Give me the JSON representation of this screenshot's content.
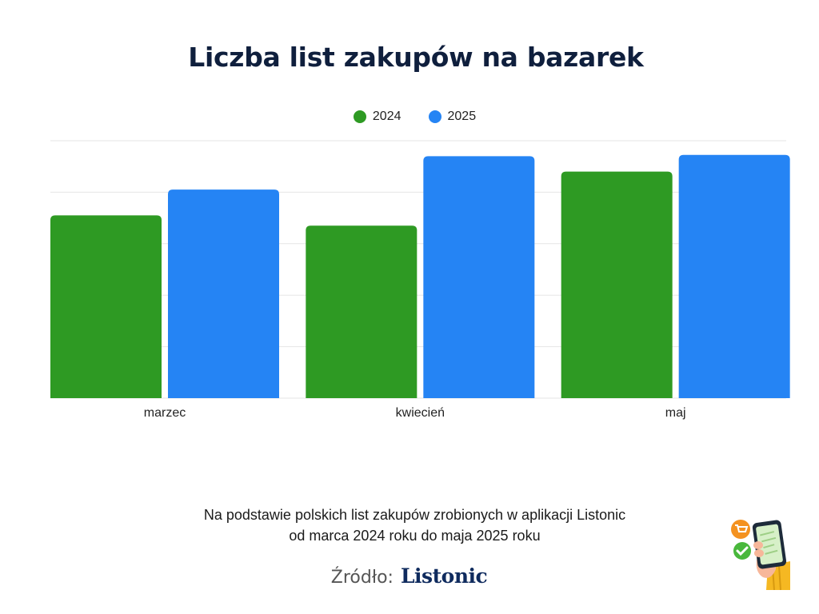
{
  "colors": {
    "series_2024": "#2e9a23",
    "series_2025": "#2584f4",
    "grid": "#e6e6e6",
    "title": "#0f1f3d"
  },
  "caption": {
    "line1": "Na podstawie polskich list zakupów zrobionych w aplikacji Listonic",
    "line2": "od marca 2024 roku do maja 2025 roku"
  },
  "source": {
    "label": "Źródło:",
    "brand": "Listonic"
  },
  "chart_data": {
    "type": "bar",
    "title": "Liczba list zakupów na bazarek",
    "categories": [
      "marzec",
      "kwiecień",
      "maj"
    ],
    "series": [
      {
        "name": "2024",
        "values": [
          71,
          67,
          88
        ],
        "color": "#2e9a23"
      },
      {
        "name": "2025",
        "values": [
          81,
          94,
          94.5
        ],
        "color": "#2584f4"
      }
    ],
    "ylim": [
      0,
      100
    ],
    "grid": true,
    "legend_position": "top-center",
    "y_tick_labels_shown": false
  },
  "icons": {
    "mascot": "hand-holding-phone-icon",
    "badge_top": "cart-icon",
    "badge_bottom": "check-icon"
  }
}
